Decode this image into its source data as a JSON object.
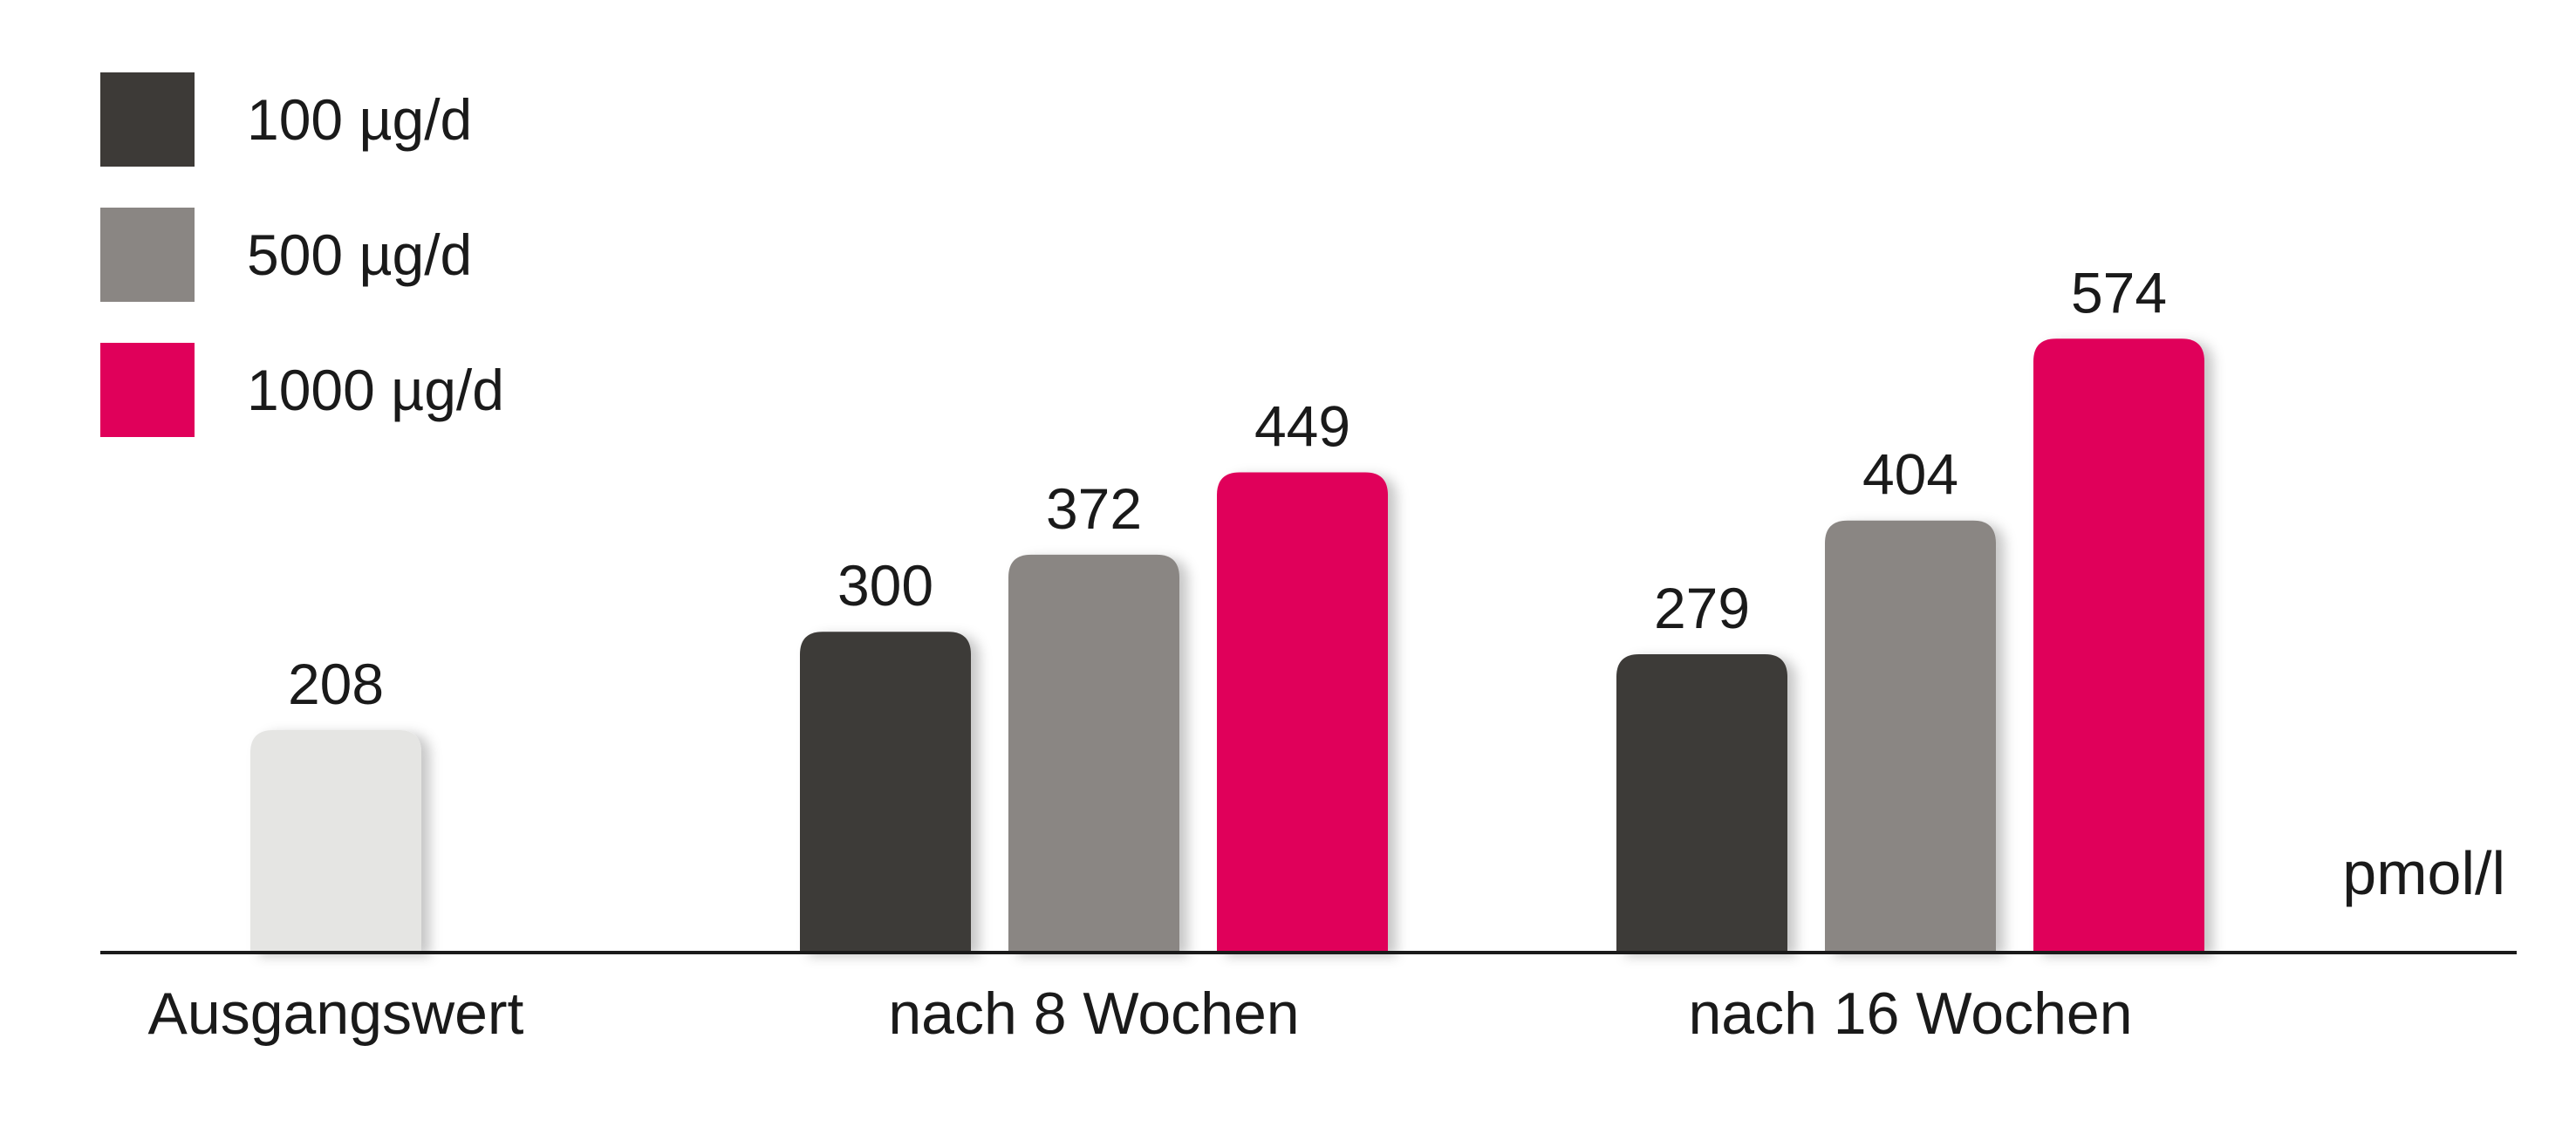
{
  "chart_data": {
    "type": "bar",
    "categories": [
      "Ausgangswert",
      "nach 8 Wochen",
      "nach 16 Wochen"
    ],
    "series": [
      {
        "name": "",
        "values": [
          208,
          null,
          null
        ],
        "color": "#e5e5e3"
      },
      {
        "name": "100 µg/d",
        "values": [
          null,
          300,
          279
        ],
        "color": "#3d3a37"
      },
      {
        "name": "500 µg/d",
        "values": [
          null,
          372,
          404
        ],
        "color": "#8a8683"
      },
      {
        "name": "1000 µg/d",
        "values": [
          null,
          449,
          574
        ],
        "color": "#e0005a"
      }
    ],
    "unit": "pmol/l",
    "ylim": [
      0,
      680
    ],
    "grid": false,
    "legend_position": "top-left",
    "title": "",
    "xlabel": "",
    "ylabel": ""
  }
}
